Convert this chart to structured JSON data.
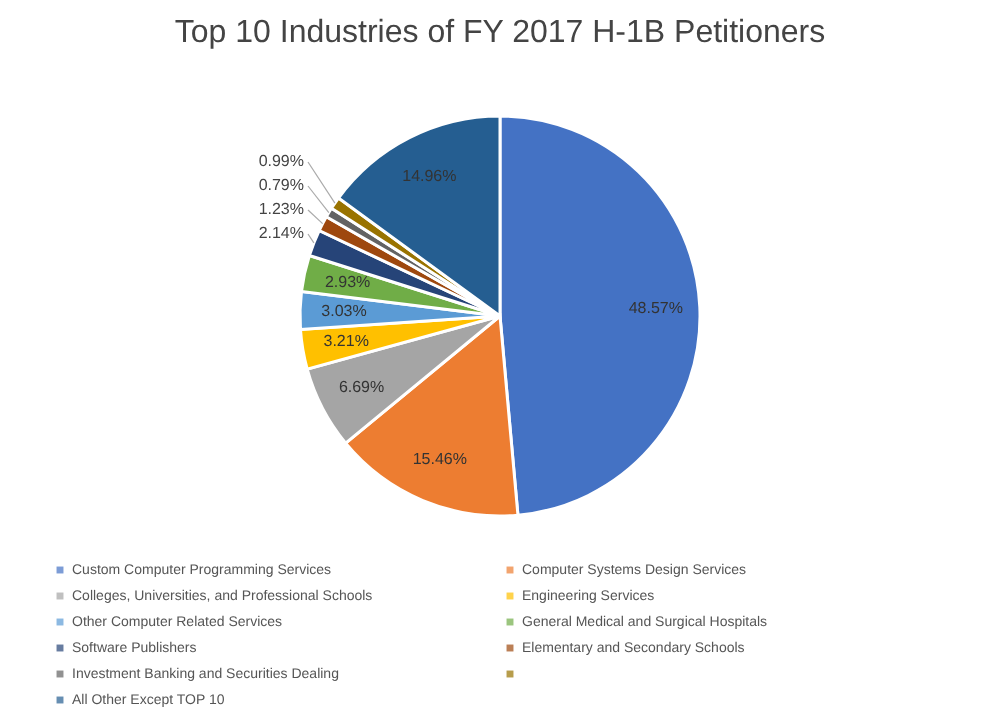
{
  "chart_data": {
    "type": "pie",
    "title": "Top 10 Industries of FY 2017 H-1B Petitioners",
    "categories": [
      "Custom Computer Programming Services",
      "Computer Systems Design Services",
      "Colleges, Universities, and Professional Schools",
      "Engineering Services",
      "Other Computer Related Services",
      "General Medical and Surgical Hospitals",
      "Software Publishers",
      "Elementary and Secondary Schools",
      "Investment Banking and Securities Dealing",
      null,
      "All Other Except TOP 10"
    ],
    "values": [
      48.57,
      15.46,
      6.69,
      3.21,
      3.03,
      2.93,
      2.14,
      1.23,
      0.79,
      0.99,
      14.96
    ],
    "colors": [
      "#4472c4",
      "#ed7d31",
      "#a5a5a5",
      "#ffc000",
      "#5b9bd5",
      "#70ad47",
      "#264478",
      "#9e480e",
      "#636363",
      "#997300",
      "#255e91"
    ],
    "value_labels": [
      "48.57%",
      "15.46%",
      "6.69%",
      "3.21%",
      "3.03%",
      "2.93%",
      "2.14%",
      "1.23%",
      "0.79%",
      "0.99%",
      "14.96%"
    ],
    "legend": "bottom"
  }
}
